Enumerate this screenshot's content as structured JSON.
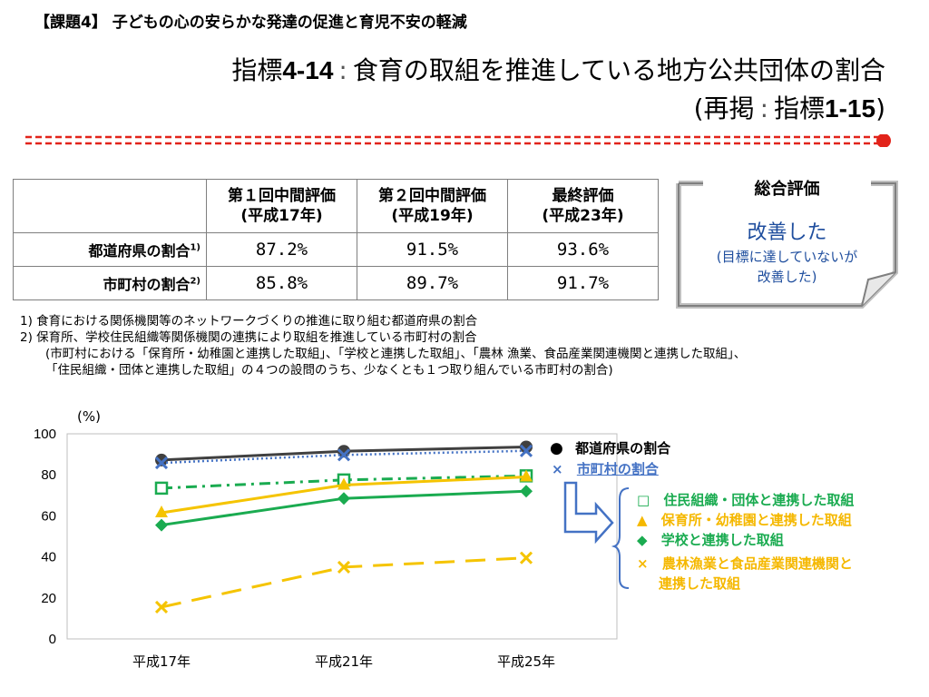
{
  "header": {
    "subject": "【課題4】 子どもの心の安らかな発達の促進と育児不安の軽減",
    "title_prefix": "指標",
    "title_number": "4-14",
    "title_colon": ":",
    "title_text": "食育の取組を推進している地方公共団体の割合",
    "title2_open": "(再掲",
    "title2_colon": ":",
    "title2_prefix": "指標",
    "title2_number": "1-15",
    "title2_close": ")"
  },
  "table": {
    "headers": [
      {
        "line1": "第１回中間評価",
        "line2": "(平成17年)"
      },
      {
        "line1": "第２回中間評価",
        "line2": "(平成19年)"
      },
      {
        "line1": "最終評価",
        "line2": "(平成23年)"
      }
    ],
    "rows": [
      {
        "label": "都道府県の割合",
        "note": "1)",
        "values": [
          "87.2%",
          "91.5%",
          "93.6%"
        ]
      },
      {
        "label": "市町村の割合",
        "note": "2)",
        "values": [
          "85.8%",
          "89.7%",
          "91.7%"
        ]
      }
    ]
  },
  "evaluation": {
    "title": "総合評価",
    "result": "改善した",
    "note_line1": "(目標に達していないが",
    "note_line2": "改善した)"
  },
  "footnotes": {
    "f1": "1) 食育における関係機関等のネットワークづくりの推進に取り組む都道府県の割合",
    "f2": "2) 保育所、学校住民組織等関係機関の連携により取組を推進している市町村の割合",
    "f3": "(市町村における「保育所・幼稚園と連携した取組」、「学校と連携した取組」、「農林 漁業、食品産業関連機関と連携した取組」、",
    "f4": "「住民組織・団体と連携した取組」の４つの設問のうち、少なくとも１つ取り組んでいる市町村の割合)"
  },
  "colors": {
    "accent_red": "#e2231a",
    "prefecture": "#404040",
    "municipality": "#4472c4",
    "resident": "#1aab50",
    "nursery": "#f5c400",
    "school": "#1aab50",
    "agri": "#f5c400",
    "eval_text": "#1f4e9e"
  },
  "chart_data": {
    "type": "line",
    "unit_label": "(%)",
    "categories": [
      "平成17年",
      "平成21年",
      "平成25年"
    ],
    "ylim": [
      0,
      100
    ],
    "yticks": [
      0,
      20,
      40,
      60,
      80,
      100
    ],
    "grid": false,
    "series": [
      {
        "name": "都道府県の割合",
        "values": [
          87.2,
          91.5,
          93.6
        ],
        "marker": "circle",
        "line": "solid",
        "color": "#404040"
      },
      {
        "name": "市町村の割合",
        "values": [
          85.8,
          89.7,
          91.7
        ],
        "marker": "x",
        "line": "dotted",
        "color": "#4472c4"
      },
      {
        "name": "住民組織・団体と連携した取組",
        "values": [
          73.5,
          77.5,
          79.5
        ],
        "marker": "square-open",
        "line": "dashdot",
        "color": "#1aab50"
      },
      {
        "name": "保育所・幼稚園と連携した取組",
        "values": [
          61.5,
          75,
          79
        ],
        "marker": "triangle",
        "line": "solid",
        "color": "#f5c400"
      },
      {
        "name": "学校と連携した取組",
        "values": [
          55.5,
          68.5,
          72
        ],
        "marker": "diamond",
        "line": "solid",
        "color": "#1aab50"
      },
      {
        "name": "農林漁業と食品産業関連機関と連携した取組",
        "values": [
          15.5,
          35,
          39.5
        ],
        "marker": "x",
        "line": "dashed",
        "color": "#f5c400"
      }
    ],
    "legend": {
      "main": [
        {
          "symbol": "●",
          "label": "都道府県の割合"
        },
        {
          "symbol": "×",
          "label": "市町村の割合"
        }
      ],
      "sub": [
        {
          "symbol": "□",
          "label": "住民組織・団体と連携した取組"
        },
        {
          "symbol": "▲",
          "label": "保育所・幼稚園と連携した取組"
        },
        {
          "symbol": "◆",
          "label": "学校と連携した取組"
        },
        {
          "symbol": "×",
          "label": "農林漁業と食品産業関連機関と",
          "label2": "連携した取組"
        }
      ]
    }
  }
}
